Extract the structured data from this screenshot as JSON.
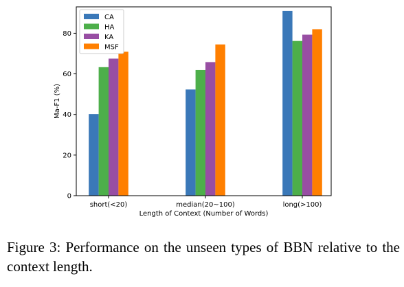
{
  "chart_data": {
    "type": "bar",
    "categories": [
      "short(<20)",
      "median(20~100)",
      "long(>100)"
    ],
    "series": [
      {
        "name": "CA",
        "color": "#3a78b8",
        "values": [
          40.2,
          52.3,
          91.0
        ]
      },
      {
        "name": "HA",
        "color": "#4daf4a",
        "values": [
          63.3,
          61.9,
          76.2
        ]
      },
      {
        "name": "KA",
        "color": "#984ea3",
        "values": [
          67.5,
          65.8,
          79.3
        ]
      },
      {
        "name": "MSF",
        "color": "#ff7f00",
        "values": [
          70.9,
          74.5,
          82.0
        ]
      }
    ],
    "title": "",
    "xlabel": "Length of Context (Number of Words)",
    "ylabel": "Ma-F1 (%)",
    "ylim": [
      0,
      93
    ],
    "yticks": [
      0,
      20,
      40,
      60,
      80
    ],
    "grid": false,
    "legend": "top-left"
  },
  "caption": "Figure 3:  Performance on the unseen types of BBN relative to the context length."
}
